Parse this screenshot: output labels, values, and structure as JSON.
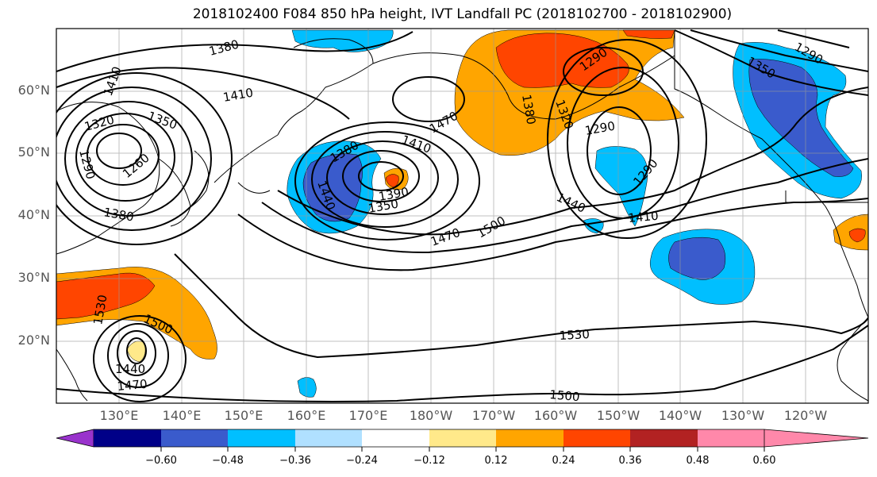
{
  "title": "2018102400 F084 850 hPa height, IVT Landfall PC (2018102700 - 2018102900)",
  "latitude_labels": [
    "60°N",
    "50°N",
    "40°N",
    "30°N",
    "20°N"
  ],
  "longitude_labels": [
    "130°E",
    "140°E",
    "150°E",
    "160°E",
    "170°E",
    "180°W",
    "170°W",
    "160°W",
    "150°W",
    "140°W",
    "130°W",
    "120°W"
  ],
  "contour_labels": {
    "c1380a": "1380",
    "c1410a": "1410",
    "c1410b": "1410",
    "c1320": "1320",
    "c1350a": "1350",
    "c1290a": "1290",
    "c1260": "1260",
    "c1380b": "1380",
    "c1380c": "1380",
    "c1410c": "1410",
    "c1470a": "1470",
    "c1440a": "1440",
    "c1390": "1390",
    "c1350b": "1350",
    "c1470b": "1470",
    "c1500a": "1500",
    "c1380d": "1380",
    "c1320b": "1320",
    "c1290b": "1290",
    "c1290c": "1290",
    "c1440b": "1440",
    "c1410d": "1410",
    "c1290d": "1290",
    "c1350c": "1350",
    "c1290e": "1290",
    "c1530a": "1530",
    "c1500b": "1500",
    "c1440c": "1440",
    "c1470c": "1470",
    "c1530b": "1530",
    "c1500c": "1500"
  },
  "colorbar": {
    "colors": [
      "#9933cc",
      "#000088",
      "#3a5bcc",
      "#00bfff",
      "#b0e0ff",
      "#ffffff",
      "#ffe98a",
      "#ffa500",
      "#ff4500",
      "#b22222",
      "#ff88aa"
    ],
    "ticks": [
      "−0.60",
      "−0.48",
      "−0.36",
      "−0.24",
      "−0.12",
      "0.12",
      "0.24",
      "0.36",
      "0.48",
      "0.60"
    ]
  }
}
